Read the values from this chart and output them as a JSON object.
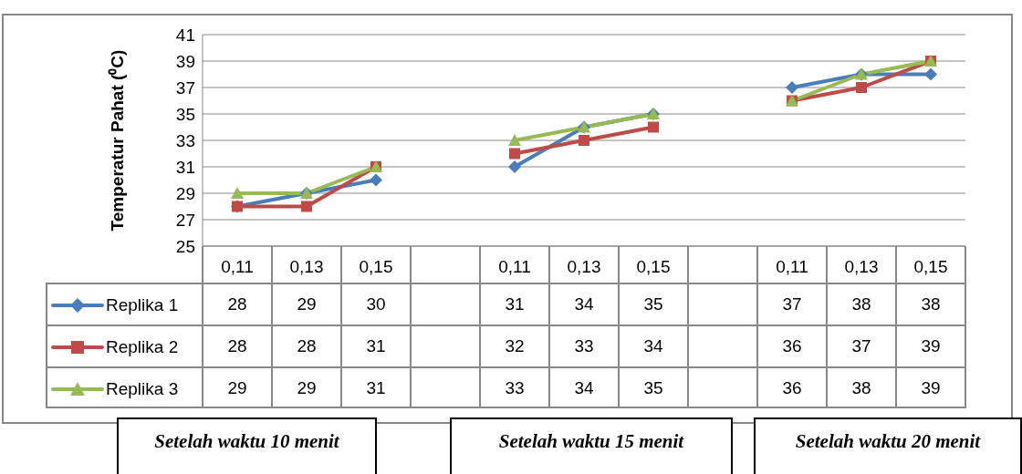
{
  "chart_data": {
    "type": "line",
    "ylabel": "Temperatur Pahat (⁰C)",
    "categories": [
      "0,11",
      "0,13",
      "0,15",
      null,
      "0,11",
      "0,13",
      "0,15",
      null,
      "0,11",
      "0,13",
      "0,15"
    ],
    "series": [
      {
        "name": "Replika 1",
        "color": "#4a7ebb",
        "marker": "diamond",
        "values": [
          28,
          29,
          30,
          null,
          31,
          34,
          35,
          null,
          37,
          38,
          38
        ]
      },
      {
        "name": "Replika 2",
        "color": "#be4b48",
        "marker": "square",
        "values": [
          28,
          28,
          31,
          null,
          32,
          33,
          34,
          null,
          36,
          37,
          39
        ]
      },
      {
        "name": "Replika 3",
        "color": "#98b954",
        "marker": "triangle",
        "values": [
          29,
          29,
          31,
          null,
          33,
          34,
          35,
          null,
          36,
          38,
          39
        ]
      }
    ],
    "ylim": [
      25,
      41
    ],
    "yticks": [
      25,
      27,
      29,
      31,
      33,
      35,
      37,
      39,
      41
    ],
    "grid": "y",
    "legend": "bottom left",
    "data_labels": true,
    "annotations": [
      "Setelah waktu 10 menit",
      "Setelah waktu 15 menit",
      "Setelah waktu 20 menit"
    ]
  }
}
